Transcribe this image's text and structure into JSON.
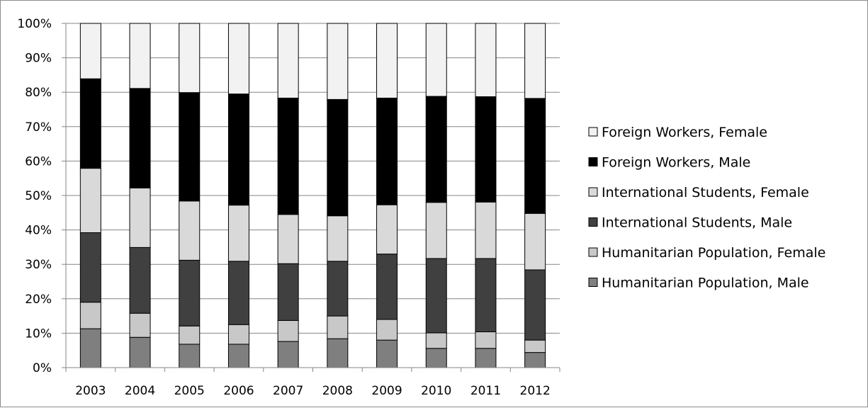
{
  "chart_data": {
    "type": "bar",
    "stacked": true,
    "normalized": true,
    "categories": [
      "2003",
      "2004",
      "2005",
      "2006",
      "2007",
      "2008",
      "2009",
      "2010",
      "2011",
      "2012"
    ],
    "series": [
      {
        "name": "Humanitarian Population, Male",
        "color": "#7f7f7f",
        "values": [
          11.3,
          8.8,
          6.8,
          6.8,
          7.6,
          8.4,
          8.0,
          5.6,
          5.6,
          4.4
        ]
      },
      {
        "name": "Humanitarian Population, Female",
        "color": "#c8c8c8",
        "values": [
          7.7,
          7.0,
          5.3,
          5.7,
          6.1,
          6.6,
          6.0,
          4.5,
          4.8,
          3.6
        ]
      },
      {
        "name": "International Students, Male",
        "color": "#404040",
        "values": [
          20.2,
          19.1,
          19.1,
          18.4,
          16.5,
          15.9,
          19.0,
          21.6,
          21.3,
          20.4
        ]
      },
      {
        "name": "International Students, Female",
        "color": "#d9d9d9",
        "values": [
          18.7,
          17.3,
          17.2,
          16.3,
          14.3,
          13.2,
          14.3,
          16.3,
          16.4,
          16.4
        ]
      },
      {
        "name": "Foreign Workers, Male",
        "color": "#000000",
        "values": [
          26.0,
          28.9,
          31.5,
          32.3,
          33.8,
          33.8,
          31.0,
          30.8,
          30.6,
          33.4
        ]
      },
      {
        "name": "Foreign Workers, Female",
        "color": "#f2f2f2",
        "values": [
          16.1,
          18.9,
          20.1,
          20.5,
          21.7,
          22.1,
          21.7,
          21.2,
          21.3,
          21.8
        ]
      }
    ],
    "ylim": [
      0,
      100
    ],
    "yticks": [
      "0%",
      "10%",
      "20%",
      "30%",
      "40%",
      "50%",
      "60%",
      "70%",
      "80%",
      "90%",
      "100%"
    ],
    "grid": true,
    "legend_position": "right",
    "legend_order": [
      5,
      4,
      3,
      2,
      1,
      0
    ]
  }
}
